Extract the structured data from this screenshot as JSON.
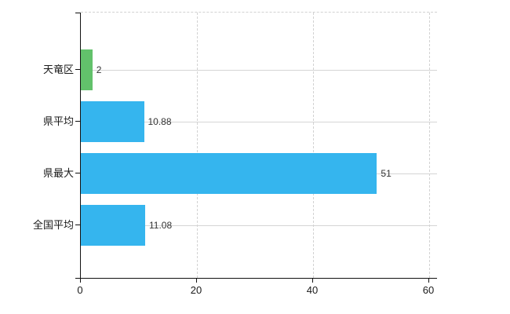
{
  "chart_data": {
    "type": "bar",
    "orientation": "horizontal",
    "title": "",
    "xlabel": "",
    "ylabel": "",
    "categories": [
      "天竜区",
      "県平均",
      "県最大",
      "全国平均"
    ],
    "values": [
      2,
      10.88,
      51,
      11.08
    ],
    "value_labels": [
      "2",
      "10.88",
      "51",
      "11.08"
    ],
    "bar_colors": [
      "#62c16b",
      "#35b5ee",
      "#35b5ee",
      "#35b5ee"
    ],
    "xlim": [
      0,
      60
    ],
    "xticks": [
      0,
      20,
      40,
      60
    ],
    "xtick_labels": [
      "0",
      "20",
      "40",
      "60"
    ],
    "grid": true,
    "legend": false,
    "colors": {
      "bar_highlight": "#62c16b",
      "bar_default": "#35b5ee",
      "grid": "#d5d5d5",
      "axis": "#111111",
      "text": "#1a1a1a"
    }
  }
}
